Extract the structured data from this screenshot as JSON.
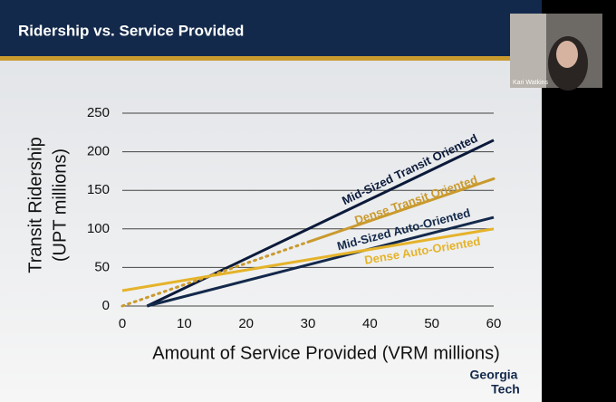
{
  "slide_title": "Ridership vs. Service Provided",
  "participant_name": "Kari Watkins",
  "logo": [
    "Georgia",
    "Tech"
  ],
  "chart_data": {
    "type": "line",
    "xlabel": "Amount of Service Provided (VRM millions)",
    "ylabel": [
      "Transit Ridership",
      "(UPT millions)"
    ],
    "xlim": [
      0,
      60
    ],
    "xticks": [
      0,
      10,
      20,
      30,
      40,
      50,
      60
    ],
    "ylim": [
      0,
      250
    ],
    "yticks": [
      0,
      50,
      100,
      150,
      200,
      250
    ],
    "grid": true,
    "series": [
      {
        "name": "Mid-Sized Transit Oriented",
        "color": "#0b1a3a",
        "x": [
          4,
          60
        ],
        "values": [
          0,
          215
        ]
      },
      {
        "name": "Dense Transit Oriented",
        "color": "#c99a2e",
        "x": [
          0,
          30,
          60
        ],
        "values": [
          0,
          83,
          165
        ],
        "dotted_segments": [
          0
        ]
      },
      {
        "name": "Mid-Sized Auto-Oriented",
        "color": "#13294b",
        "x": [
          4,
          60
        ],
        "values": [
          0,
          115
        ]
      },
      {
        "name": "Dense Auto-Oriented",
        "color": "#e5b32a",
        "x": [
          0,
          60
        ],
        "values": [
          20,
          100
        ]
      }
    ]
  }
}
